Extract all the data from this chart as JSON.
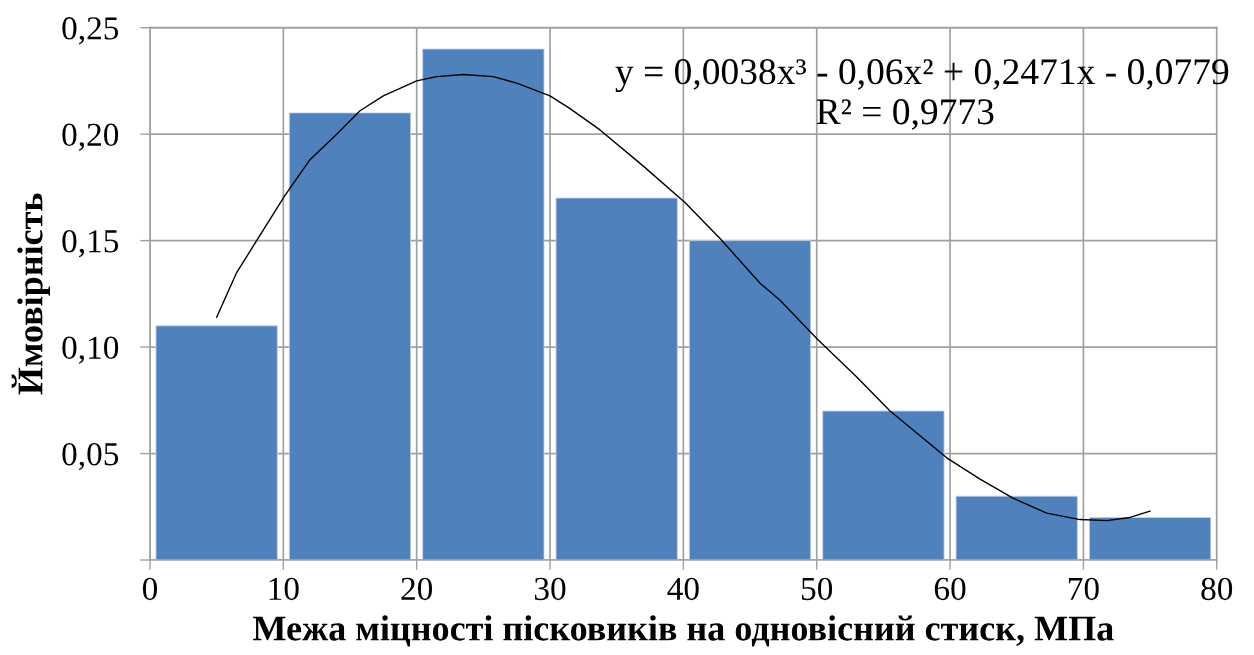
{
  "chart_data": {
    "type": "histogram",
    "bins": [
      0,
      10,
      20,
      30,
      40,
      50,
      60,
      70,
      80
    ],
    "values": [
      0.11,
      0.21,
      0.24,
      0.17,
      0.15,
      0.07,
      0.03,
      0.02
    ],
    "color": "#4f81bd",
    "xlabel": "Межа міцності пісковиків на одновісний стиск, МПа",
    "ylabel": "Ймовірність",
    "xlim": [
      0,
      80
    ],
    "xticks": [
      0,
      10,
      20,
      30,
      40,
      50,
      60,
      70,
      80
    ],
    "ylim": [
      0,
      0.25
    ],
    "yticks": [
      {
        "value": 0,
        "label": null
      },
      {
        "value": 0.05,
        "label": "0,05"
      },
      {
        "value": 0.1,
        "label": "0,10"
      },
      {
        "value": 0.15,
        "label": "0,15"
      },
      {
        "value": 0.2,
        "label": "0,20"
      },
      {
        "value": 0.25,
        "label": "0,25"
      }
    ],
    "grid": true,
    "annotations": [
      "y = 0,0038x³ - 0,06x² + 0,2471x - 0,0779",
      "R² = 0,9773"
    ],
    "series": [
      {
        "type": "line",
        "color": "#000000",
        "x": [
          5.0,
          6.5,
          8.0,
          10.1,
          12.0,
          14.0,
          15.75,
          17.5,
          20.0,
          21.5,
          23.5,
          25.75,
          27.5,
          30.0,
          31.5,
          33.75,
          37.0,
          40.1,
          42.75,
          45.75,
          47.25,
          50.0,
          53.0,
          55.5,
          59.75,
          62.25,
          64.75,
          67.25,
          69.75,
          71.75,
          73.5,
          75.0
        ],
        "values": [
          0.114,
          0.135,
          0.15,
          0.171,
          0.188,
          0.2,
          0.211,
          0.218,
          0.225,
          0.227,
          0.228,
          0.227,
          0.224,
          0.218,
          0.212,
          0.202,
          0.185,
          0.168,
          0.151,
          0.13,
          0.122,
          0.104,
          0.086,
          0.07,
          0.048,
          0.038,
          0.029,
          0.022,
          0.019,
          0.0185,
          0.02,
          0.023
        ]
      }
    ]
  }
}
